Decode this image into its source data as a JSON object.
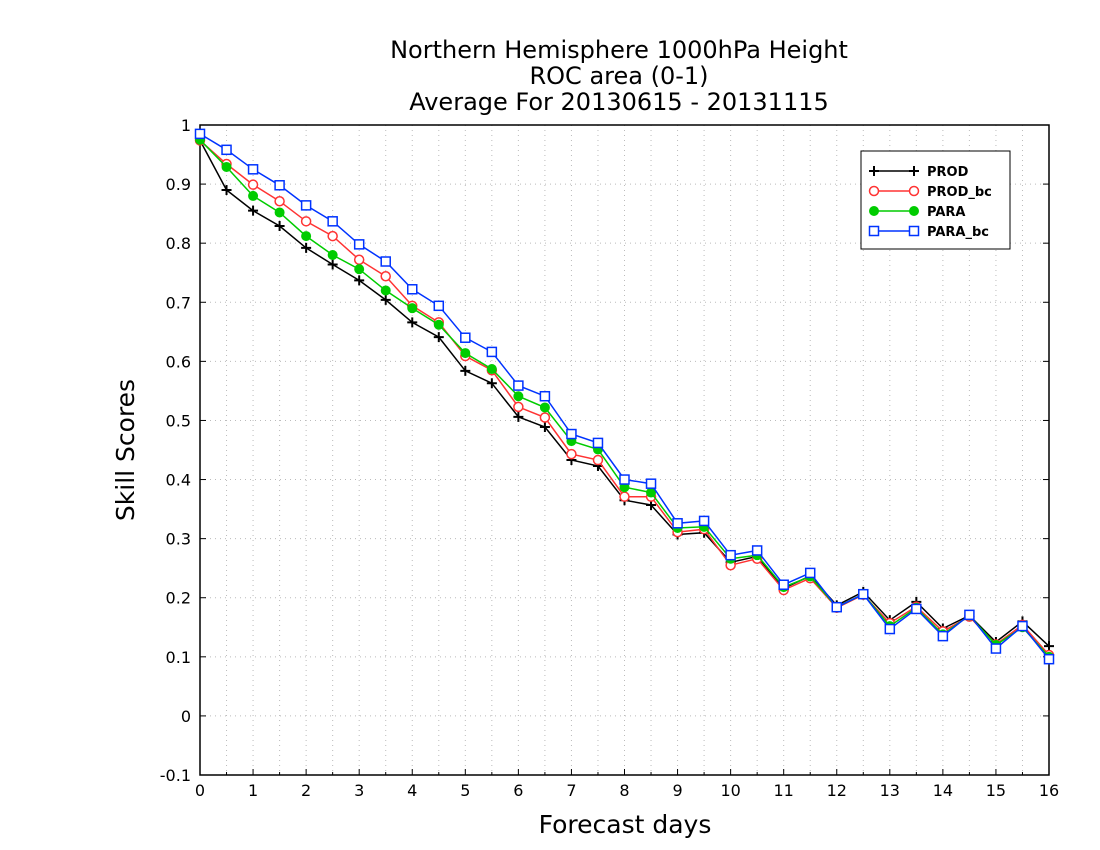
{
  "chart_data": {
    "type": "line",
    "title": [
      "Northern Hemisphere 1000hPa Height",
      "ROC area (0-1)",
      "Average For 20130615 - 20131115"
    ],
    "xlabel": "Forecast days",
    "ylabel": "Skill Scores",
    "xlim": [
      0,
      16
    ],
    "ylim": [
      -0.1,
      1
    ],
    "xticks": [
      0,
      1,
      2,
      3,
      4,
      5,
      6,
      7,
      8,
      9,
      10,
      11,
      12,
      13,
      14,
      15,
      16
    ],
    "xtick_labels": [
      "0",
      "1",
      "2",
      "3",
      "4",
      "5",
      "6",
      "7",
      "8",
      "9",
      "10",
      "11",
      "12",
      "13",
      "14",
      "15",
      "16"
    ],
    "yticks": [
      -0.1,
      0,
      0.1,
      0.2,
      0.3,
      0.4,
      0.5,
      0.6,
      0.7,
      0.8,
      0.9,
      1
    ],
    "ytick_labels": [
      "-0.1",
      "0",
      "0.1",
      "0.2",
      "0.3",
      "0.4",
      "0.5",
      "0.6",
      "0.7",
      "0.8",
      "0.9",
      "1"
    ],
    "grid": true,
    "legend_position": "top-right",
    "x": [
      0,
      0.5,
      1,
      1.5,
      2,
      2.5,
      3,
      3.5,
      4,
      4.5,
      5,
      5.5,
      6,
      6.5,
      7,
      7.5,
      8,
      8.5,
      9,
      9.5,
      10,
      10.5,
      11,
      11.5,
      12,
      12.5,
      13,
      13.5,
      14,
      14.5,
      15,
      15.5,
      16
    ],
    "series": [
      {
        "name": "PROD",
        "color": "#000000",
        "marker": "plus",
        "values": [
          0.974,
          0.89,
          0.855,
          0.829,
          0.792,
          0.764,
          0.737,
          0.704,
          0.666,
          0.641,
          0.584,
          0.563,
          0.506,
          0.489,
          0.433,
          0.423,
          0.365,
          0.357,
          0.307,
          0.31,
          0.26,
          0.27,
          0.216,
          0.237,
          0.187,
          0.21,
          0.162,
          0.193,
          0.148,
          0.17,
          0.125,
          0.16,
          0.118
        ]
      },
      {
        "name": "PROD_bc",
        "color": "#ff3333",
        "marker": "circle-open",
        "values": [
          0.974,
          0.934,
          0.899,
          0.871,
          0.837,
          0.812,
          0.772,
          0.744,
          0.694,
          0.666,
          0.609,
          0.585,
          0.523,
          0.505,
          0.443,
          0.433,
          0.371,
          0.371,
          0.311,
          0.316,
          0.255,
          0.266,
          0.213,
          0.233,
          0.183,
          0.205,
          0.157,
          0.185,
          0.143,
          0.168,
          0.121,
          0.154,
          0.103
        ]
      },
      {
        "name": "PARA",
        "color": "#00cc00",
        "marker": "circle-filled",
        "values": [
          0.975,
          0.929,
          0.88,
          0.852,
          0.812,
          0.78,
          0.756,
          0.72,
          0.69,
          0.662,
          0.614,
          0.587,
          0.541,
          0.522,
          0.465,
          0.451,
          0.387,
          0.378,
          0.318,
          0.32,
          0.266,
          0.272,
          0.218,
          0.236,
          0.184,
          0.206,
          0.152,
          0.183,
          0.138,
          0.17,
          0.12,
          0.15,
          0.1
        ]
      },
      {
        "name": "PARA_bc",
        "color": "#0033ff",
        "marker": "square-open",
        "values": [
          0.985,
          0.958,
          0.925,
          0.898,
          0.864,
          0.837,
          0.798,
          0.769,
          0.722,
          0.694,
          0.64,
          0.616,
          0.559,
          0.541,
          0.477,
          0.462,
          0.4,
          0.393,
          0.326,
          0.33,
          0.272,
          0.28,
          0.222,
          0.242,
          0.184,
          0.206,
          0.147,
          0.181,
          0.135,
          0.171,
          0.114,
          0.152,
          0.096
        ]
      }
    ]
  }
}
